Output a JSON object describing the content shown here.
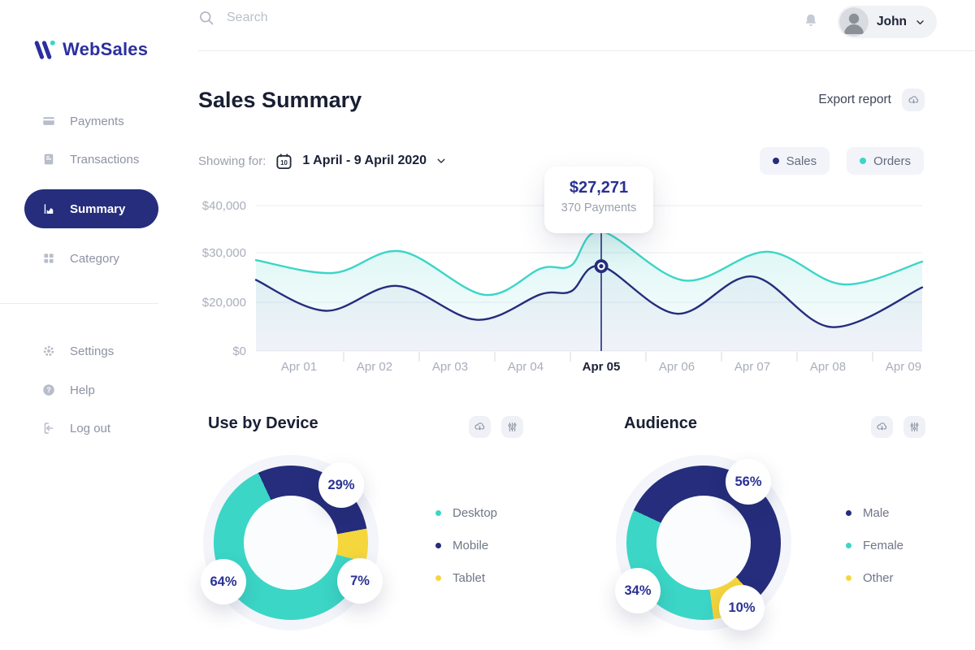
{
  "app": {
    "brand": "WebSales"
  },
  "topbar": {
    "search_placeholder": "Search",
    "user_name": "John"
  },
  "sidebar": {
    "items": [
      {
        "label": "Payments",
        "icon": "credit-card-icon",
        "active": false
      },
      {
        "label": "Transactions",
        "icon": "document-icon",
        "active": false
      },
      {
        "label": "Summary",
        "icon": "area-chart-icon",
        "active": true
      },
      {
        "label": "Category",
        "icon": "grid-icon",
        "active": false
      }
    ],
    "footer_items": [
      {
        "label": "Settings",
        "icon": "gear-icon"
      },
      {
        "label": "Help",
        "icon": "question-icon"
      },
      {
        "label": "Log out",
        "icon": "logout-icon"
      }
    ]
  },
  "page": {
    "title": "Sales Summary",
    "export_label": "Export report",
    "showing_for_label": "Showing for:",
    "date_range": "1 April - 9 April 2020",
    "calendar_day": "10"
  },
  "legend_chips": [
    {
      "label": "Sales",
      "color": "#252d7c"
    },
    {
      "label": "Orders",
      "color": "#3bd6c6"
    }
  ],
  "colors": {
    "primary": "#252d7c",
    "teal": "#3bd6c6",
    "yellow": "#f5d63d",
    "muted_text": "#9aa0ad",
    "axis_text": "#a8aeba",
    "grid": "#eef0f5"
  },
  "chart_data": [
    {
      "type": "line",
      "title": "Sales Summary",
      "x_tick_labels": [
        "Apr 01",
        "Apr 02",
        "Apr 03",
        "Apr 04",
        "Apr 05",
        "Apr 06",
        "Apr 07",
        "Apr 08",
        "Apr 09"
      ],
      "y_tick_labels": [
        "$40,000",
        "$30,000",
        "$20,000",
        "$0"
      ],
      "y_tick_values": [
        40000,
        30000,
        20000,
        0
      ],
      "grid": true,
      "legend_position": "top-right",
      "series": [
        {
          "name": "Sales",
          "color": "#252d7c",
          "points": [
            [
              -0.57,
              24500
            ],
            [
              0.35,
              16500
            ],
            [
              1.3,
              23300
            ],
            [
              2.35,
              12800
            ],
            [
              3.2,
              21600
            ],
            [
              3.6,
              22200
            ],
            [
              4,
              27271
            ],
            [
              5,
              15300
            ],
            [
              6,
              25200
            ],
            [
              7.05,
              9800
            ],
            [
              8.25,
              23000
            ]
          ]
        },
        {
          "name": "Orders",
          "color": "#3bd6c6",
          "points": [
            [
              -0.57,
              28500
            ],
            [
              0.45,
              25900
            ],
            [
              1.35,
              30300
            ],
            [
              2.45,
              21500
            ],
            [
              3.2,
              26800
            ],
            [
              3.6,
              27400
            ],
            [
              4,
              34500
            ],
            [
              5.1,
              24400
            ],
            [
              6.2,
              30200
            ],
            [
              7.2,
              23600
            ],
            [
              8.25,
              28200
            ]
          ]
        }
      ],
      "annotation": {
        "x": "Apr 05",
        "value": 27271,
        "label": "$27,271",
        "sublabel": "370 Payments"
      }
    },
    {
      "type": "pie",
      "donut": true,
      "title": "Use by Device",
      "rotation_deg": 335,
      "segments": [
        {
          "label": "Mobile",
          "value": 29,
          "color": "#252d7c"
        },
        {
          "label": "Tablet",
          "value": 7,
          "color": "#f5d63d"
        },
        {
          "label": "Desktop",
          "value": 64,
          "color": "#3bd6c6"
        }
      ],
      "legend": [
        {
          "label": "Desktop",
          "color": "#3bd6c6"
        },
        {
          "label": "Mobile",
          "color": "#252d7c"
        },
        {
          "label": "Tablet",
          "color": "#f5d63d"
        }
      ]
    },
    {
      "type": "pie",
      "donut": true,
      "title": "Audience",
      "rotation_deg": 295,
      "segments": [
        {
          "label": "Male",
          "value": 56,
          "color": "#252d7c"
        },
        {
          "label": "Other",
          "value": 10,
          "color": "#f5d63d"
        },
        {
          "label": "Female",
          "value": 34,
          "color": "#3bd6c6"
        }
      ],
      "legend": [
        {
          "label": "Male",
          "color": "#252d7c"
        },
        {
          "label": "Female",
          "color": "#3bd6c6"
        },
        {
          "label": "Other",
          "color": "#f5d63d"
        }
      ]
    }
  ]
}
